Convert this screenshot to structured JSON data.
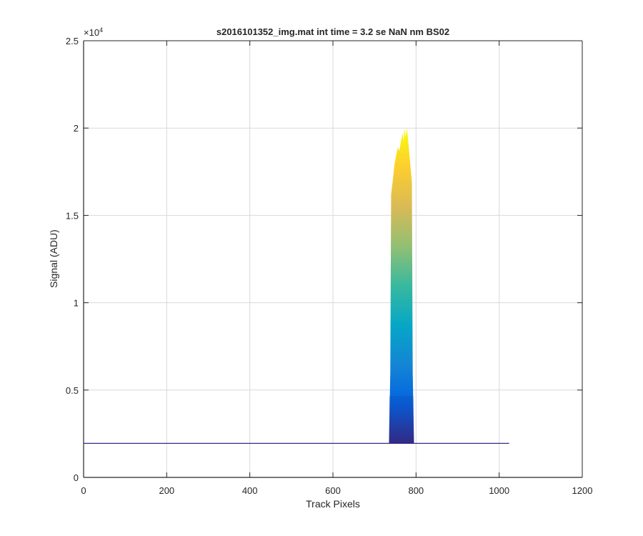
{
  "chart_data": {
    "type": "line",
    "title": "s2016101352_img.mat int time = 3.2 se  NaN nm BS02",
    "xlabel": "Track Pixels",
    "ylabel": "Signal (ADU)",
    "xlim": [
      0,
      1200
    ],
    "ylim": [
      0,
      25000
    ],
    "xticks": [
      0,
      200,
      400,
      600,
      800,
      1000,
      1200
    ],
    "xtick_labels": [
      "0",
      "200",
      "400",
      "600",
      "800",
      "1000",
      "1200"
    ],
    "yticks": [
      0,
      5000,
      10000,
      15000,
      20000,
      25000
    ],
    "ytick_labels": [
      "0",
      "0.5",
      "1",
      "1.5",
      "2",
      "2.5"
    ],
    "y_exponent_base": "×10",
    "y_exponent_power": "4",
    "grid": true,
    "colormap": "parula",
    "baseline": {
      "x_start": 1,
      "x_end": 1024,
      "value": 1950
    },
    "profile": {
      "x": [
        735,
        738,
        740,
        742,
        745,
        748,
        752,
        756,
        760,
        764,
        768,
        770,
        772,
        775,
        778,
        781,
        784,
        787,
        790,
        792,
        795
      ],
      "peak": [
        2100,
        6000,
        16200,
        16600,
        17200,
        17900,
        18400,
        18900,
        18700,
        19300,
        19700,
        19200,
        20000,
        19500,
        20000,
        19300,
        18500,
        17700,
        16900,
        6000,
        2100
      ]
    }
  },
  "colors": {
    "parula": [
      "#352a87",
      "#0363e1",
      "#1485d4",
      "#06a7c6",
      "#38b99e",
      "#92bf73",
      "#d9ba56",
      "#fcce2e",
      "#f9fb0e"
    ],
    "axes": "#262626",
    "grid": "#d9d9d9"
  }
}
